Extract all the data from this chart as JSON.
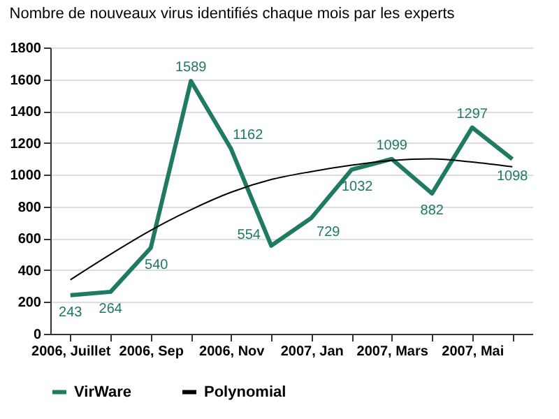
{
  "chart_data": {
    "type": "line",
    "title": "Nombre de nouveaux virus identifiés chaque mois par les experts",
    "categories": [
      "2006, Juillet",
      null,
      "2006, Sep",
      null,
      "2006, Nov",
      null,
      "2007, Jan",
      null,
      "2007, Mars",
      null,
      "2007, Mai",
      null
    ],
    "series": [
      {
        "name": "VirWare",
        "color": "#1f7a63",
        "values": [
          243,
          264,
          540,
          1589,
          1162,
          554,
          729,
          1032,
          1099,
          882,
          1297,
          1098
        ],
        "value_labels": [
          "243",
          "264",
          "540",
          "1589",
          "1162",
          "554",
          "729",
          "1032",
          "1099",
          "882",
          "1297",
          "1098"
        ]
      },
      {
        "name": "Polynomial",
        "color": "#000000",
        "values": [
          340,
          500,
          650,
          780,
          890,
          970,
          1020,
          1060,
          1090,
          1100,
          1080,
          1050
        ]
      }
    ],
    "ylim": [
      0,
      1800
    ],
    "yticks": [
      0,
      200,
      400,
      600,
      800,
      1000,
      1200,
      1400,
      1600,
      1800
    ],
    "grid": "y",
    "legend": "bottom",
    "marker": "none"
  }
}
